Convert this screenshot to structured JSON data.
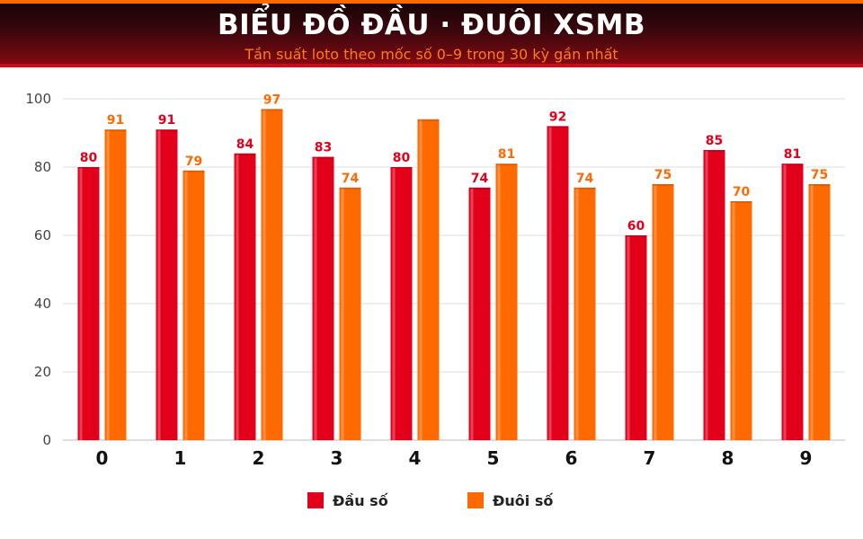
{
  "header": {
    "title": "BIỂU ĐỒ ĐẦU · ĐUÔI XSMB",
    "subtitle": "Tần suất loto theo mốc số 0–9 trong 30 kỳ gần nhất"
  },
  "colors": {
    "dau": "#e3001b",
    "duoi": "#ff6a00",
    "grid": "#dddddd"
  },
  "chart_data": {
    "type": "bar",
    "title": "BIỂU ĐỒ ĐẦU · ĐUÔI XSMB",
    "subtitle": "Tần suất loto theo mốc số 0–9 trong 30 kỳ gần nhất",
    "xlabel": "",
    "ylabel": "",
    "ylim": [
      0,
      100
    ],
    "yticks": [
      0,
      20,
      40,
      60,
      80,
      100
    ],
    "grid": true,
    "legend_position": "bottom",
    "categories": [
      "0",
      "1",
      "2",
      "3",
      "4",
      "5",
      "6",
      "7",
      "8",
      "9"
    ],
    "series": [
      {
        "name": "Đầu số",
        "color": "#e3001b",
        "values": [
          80,
          91,
          84,
          83,
          80,
          74,
          92,
          60,
          85,
          81
        ],
        "labels": [
          "80",
          "91",
          "84",
          "83",
          "80",
          "74",
          "92",
          "60",
          "85",
          "81"
        ]
      },
      {
        "name": "Đuôi số",
        "color": "#ff6a00",
        "values": [
          91,
          79,
          97,
          74,
          94,
          81,
          74,
          75,
          70,
          75
        ],
        "labels": [
          "91",
          "79",
          "97",
          "74",
          "",
          "81",
          "74",
          "75",
          "70",
          "75"
        ]
      }
    ]
  },
  "legend": {
    "items": [
      {
        "label": "Đầu số",
        "color": "#e3001b"
      },
      {
        "label": "Đuôi số",
        "color": "#ff6a00"
      }
    ]
  }
}
